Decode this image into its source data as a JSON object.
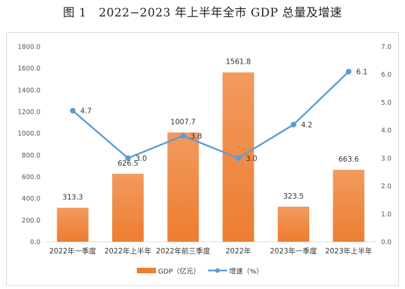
{
  "figure": {
    "number": "图 1",
    "title": "2022−2023 年上半年全市 GDP 总量及增速"
  },
  "chart_data": {
    "type": "bar",
    "categories": [
      "2022年一季度",
      "2022年上半年",
      "2022年前三季度",
      "2022年",
      "2023年一季度",
      "2023年上半年"
    ],
    "series": [
      {
        "name": "GDP（亿元）",
        "type": "bar",
        "axis": "left",
        "color": "#ed7d31",
        "values": [
          313.3,
          626.5,
          1007.7,
          1561.8,
          323.5,
          663.6
        ],
        "labels": [
          "313.3",
          "626.5",
          "1007.7",
          "1561.8",
          "323.5",
          "663.6"
        ]
      },
      {
        "name": "增速（%）",
        "type": "line",
        "axis": "right",
        "color": "#5b9bd5",
        "values": [
          4.7,
          3.0,
          3.8,
          3.0,
          4.2,
          6.1
        ],
        "labels": [
          "4.7",
          "3.0",
          "3.8",
          "3.0",
          "4.2",
          "6.1"
        ]
      }
    ],
    "y_left": {
      "min": 0,
      "max": 1800,
      "step": 200,
      "ticks": [
        "0.0",
        "200.0",
        "400.0",
        "600.0",
        "800.0",
        "1000.0",
        "1200.0",
        "1400.0",
        "1600.0",
        "1800.0"
      ]
    },
    "y_right": {
      "min": 0,
      "max": 7,
      "step": 1,
      "ticks": [
        "0.0",
        "1.0",
        "2.0",
        "3.0",
        "4.0",
        "5.0",
        "6.0",
        "7.0"
      ]
    },
    "grid": false,
    "legend_position": "bottom"
  }
}
